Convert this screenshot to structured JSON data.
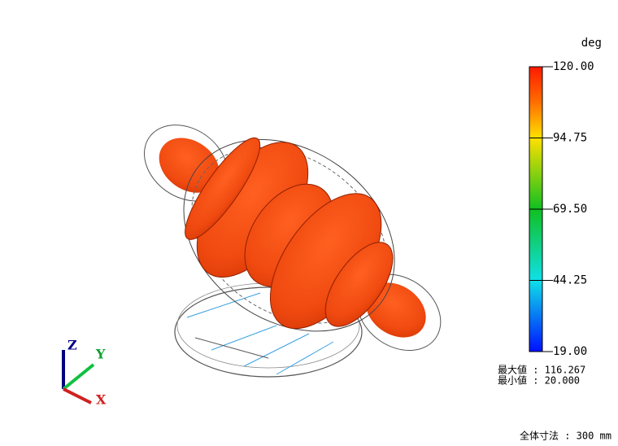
{
  "legend": {
    "unit": "deg",
    "ticks": [
      "120.00",
      "94.75",
      "69.50",
      "44.25",
      "19.00"
    ]
  },
  "stats": [
    "最大値 : 116.267",
    "最小値 :  20.000"
  ],
  "axes": {
    "z": "Z",
    "y": "Y",
    "x": "X"
  },
  "footer": "全体寸法 : 300 mm"
}
